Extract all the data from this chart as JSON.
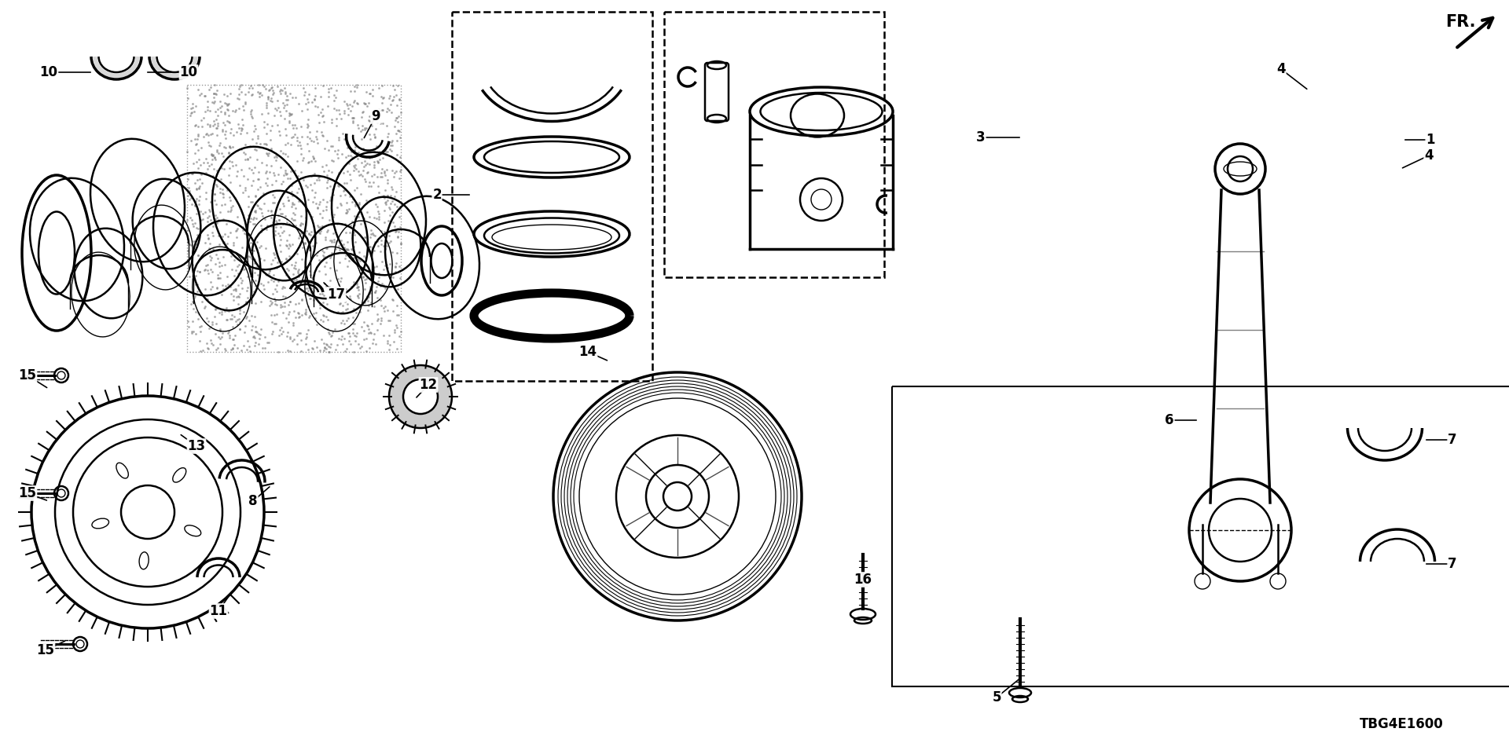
{
  "background_color": "#ffffff",
  "fig_width": 19.2,
  "fig_height": 9.6,
  "dpi": 100,
  "catalog_code": "TBG4E1600",
  "labels": [
    [
      "1",
      1820,
      178,
      1785,
      178
    ],
    [
      "2",
      556,
      248,
      600,
      248
    ],
    [
      "3",
      1248,
      175,
      1300,
      175
    ],
    [
      "4",
      1630,
      88,
      1665,
      115
    ],
    [
      "4",
      1818,
      198,
      1782,
      215
    ],
    [
      "5",
      1268,
      888,
      1300,
      862
    ],
    [
      "6",
      1488,
      535,
      1525,
      535
    ],
    [
      "7",
      1848,
      560,
      1812,
      560
    ],
    [
      "7",
      1848,
      718,
      1812,
      718
    ],
    [
      "8",
      322,
      638,
      345,
      618
    ],
    [
      "9",
      478,
      148,
      462,
      178
    ],
    [
      "10",
      62,
      92,
      118,
      92
    ],
    [
      "10",
      240,
      92,
      185,
      92
    ],
    [
      "11",
      278,
      778,
      296,
      752
    ],
    [
      "12",
      545,
      490,
      528,
      508
    ],
    [
      "13",
      250,
      568,
      228,
      552
    ],
    [
      "14",
      748,
      448,
      775,
      460
    ],
    [
      "15",
      35,
      478,
      62,
      495
    ],
    [
      "15",
      35,
      628,
      62,
      638
    ],
    [
      "15",
      58,
      828,
      85,
      815
    ],
    [
      "16",
      1098,
      738,
      1098,
      715
    ],
    [
      "17",
      428,
      375,
      410,
      358
    ]
  ]
}
